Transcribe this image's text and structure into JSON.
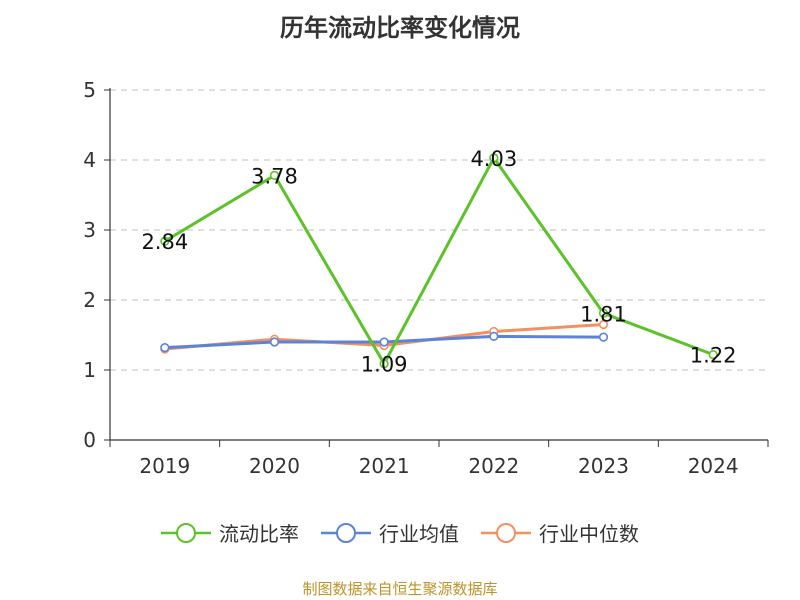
{
  "title": "历年流动比率变化情况",
  "source_note": "制图数据来自恒生聚源数据库",
  "chart_data": {
    "type": "line",
    "title": "历年流动比率变化情况",
    "categories": [
      "2019",
      "2020",
      "2021",
      "2022",
      "2023",
      "2024"
    ],
    "ylim": [
      0,
      5
    ],
    "yticks": [
      0,
      1,
      2,
      3,
      4,
      5
    ],
    "grid": true,
    "legend_position": "bottom",
    "series": [
      {
        "name": "流动比率",
        "color": "#5cc22a",
        "values": [
          2.84,
          3.78,
          1.09,
          4.03,
          1.81,
          1.22
        ],
        "data_labels": [
          "2.84",
          "3.78",
          "1.09",
          "4.03",
          "1.81",
          "1.22"
        ]
      },
      {
        "name": "行业均值",
        "color": "#5b84d8",
        "values": [
          1.32,
          1.4,
          1.4,
          1.48,
          1.47,
          null
        ]
      },
      {
        "name": "行业中位数",
        "color": "#f39061",
        "values": [
          1.3,
          1.44,
          1.35,
          1.55,
          1.65,
          null
        ]
      }
    ]
  }
}
